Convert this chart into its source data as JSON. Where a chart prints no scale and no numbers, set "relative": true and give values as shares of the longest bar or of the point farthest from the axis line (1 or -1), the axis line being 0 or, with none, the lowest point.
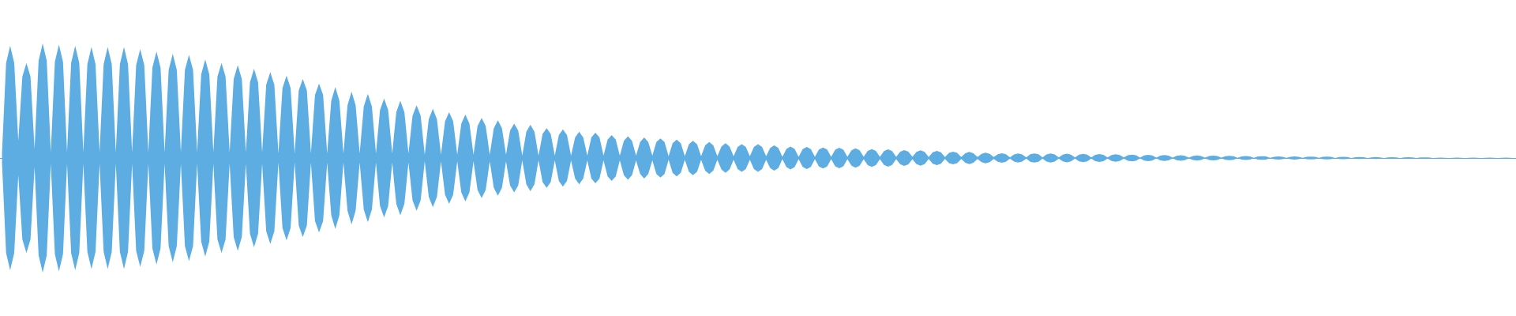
{
  "chart_data": {
    "type": "area",
    "relative": true,
    "categories": [
      null,
      null,
      null,
      null,
      null,
      null,
      null,
      null,
      null,
      null,
      null,
      null,
      null,
      null,
      null,
      null,
      null,
      null,
      null,
      null,
      null,
      null,
      null,
      null,
      null,
      null,
      null,
      null,
      null,
      null,
      null,
      null,
      null,
      null,
      null,
      null,
      null,
      null,
      null,
      null,
      null,
      null,
      null,
      null,
      null,
      null,
      null,
      null,
      null,
      null,
      null,
      null,
      null,
      null,
      null,
      null,
      null,
      null,
      null,
      null,
      null,
      null,
      null,
      null,
      null,
      null,
      null,
      null,
      null,
      null,
      null,
      null,
      null,
      null,
      null,
      null,
      null,
      null,
      null,
      null,
      null,
      null,
      null,
      null,
      null,
      null,
      null,
      null,
      null,
      null,
      null,
      null,
      null,
      null,
      null,
      null,
      null,
      null,
      null,
      null,
      null,
      null,
      null,
      null,
      null,
      null,
      null,
      null,
      null,
      null,
      null,
      null,
      null,
      null,
      null,
      null,
      null,
      null,
      null,
      null,
      null,
      null,
      null,
      null,
      null,
      null,
      null,
      null,
      null,
      null,
      null,
      null,
      null,
      null,
      null,
      null,
      null,
      null,
      null,
      null,
      null,
      null,
      null,
      null,
      null,
      null,
      null,
      null,
      null,
      null,
      null,
      null,
      null,
      null,
      null,
      null,
      null,
      null,
      null,
      null,
      null,
      null,
      null,
      null,
      null,
      null,
      null,
      null,
      null,
      null,
      null,
      null,
      null,
      null,
      null,
      null,
      null,
      null,
      null,
      null,
      null,
      null,
      null,
      null,
      null,
      null,
      null,
      null,
      null,
      null,
      null,
      null,
      null,
      null,
      null,
      null,
      null,
      null,
      null,
      null,
      null,
      null,
      null,
      null,
      null,
      null,
      null,
      null,
      null,
      null,
      null,
      null,
      null,
      null,
      null,
      null,
      null,
      null,
      null,
      null,
      null,
      null,
      null,
      null,
      null,
      null,
      null,
      null,
      null,
      null,
      null,
      null,
      null,
      null,
      null,
      null,
      null,
      null,
      null,
      null,
      null,
      null,
      null,
      null,
      null,
      null,
      null,
      null,
      null,
      null,
      null,
      null,
      null,
      null,
      null,
      null,
      null,
      null,
      null,
      null,
      null,
      null,
      null,
      null,
      null,
      null,
      null,
      null,
      null,
      null,
      null,
      null,
      null,
      null,
      null,
      null,
      null,
      null,
      null,
      null,
      null,
      null,
      null,
      null,
      null,
      null,
      null,
      null,
      null,
      null,
      null,
      null,
      null,
      null,
      null,
      null,
      null,
      null,
      null,
      null,
      null,
      null,
      null,
      null,
      null,
      null,
      null,
      null,
      null,
      null,
      null,
      null,
      null,
      null,
      null,
      null,
      null,
      null,
      null,
      null,
      null,
      null,
      null,
      null,
      null,
      null,
      null,
      null,
      null,
      null,
      null,
      null,
      null,
      null,
      null,
      null,
      null,
      null,
      null,
      null,
      null,
      null,
      null,
      null,
      null,
      null,
      null,
      null,
      null,
      null,
      null,
      null,
      null,
      null,
      null,
      null,
      null,
      null,
      null,
      null,
      null,
      null,
      null,
      null,
      null,
      null,
      null,
      null,
      null,
      null,
      null,
      null,
      null
    ],
    "series": [
      {
        "color": "#5dade2",
        "values": [
          0.05,
          0.83,
          0.98,
          0.83,
          0.15,
          0.71,
          0.83,
          0.71,
          0.08,
          0.85,
          1,
          0.85,
          0.05,
          0.84,
          0.99,
          0.84,
          0.05,
          0.83,
          0.98,
          0.83,
          0.05,
          0.82,
          0.97,
          0.82,
          0.05,
          0.82,
          0.97,
          0.82,
          0.05,
          0.82,
          0.97,
          0.82,
          0.05,
          0.81,
          0.95,
          0.81,
          0.05,
          0.79,
          0.93,
          0.79,
          0.05,
          0.77,
          0.91,
          0.77,
          0.05,
          0.77,
          0.9,
          0.77,
          0.05,
          0.73,
          0.86,
          0.73,
          0.05,
          0.71,
          0.83,
          0.71,
          0.05,
          0.69,
          0.81,
          0.69,
          0.05,
          0.66,
          0.78,
          0.66,
          0.05,
          0.64,
          0.75,
          0.64,
          0.04,
          0.61,
          0.72,
          0.61,
          0.04,
          0.59,
          0.69,
          0.59,
          0.04,
          0.55,
          0.65,
          0.55,
          0.04,
          0.5,
          0.62,
          0.5,
          0.04,
          0.46,
          0.58,
          0.46,
          0.04,
          0.45,
          0.56,
          0.45,
          0.04,
          0.42,
          0.52,
          0.42,
          0.04,
          0.4,
          0.5,
          0.4,
          0.04,
          0.37,
          0.46,
          0.37,
          0.03,
          0.34,
          0.43,
          0.34,
          0.03,
          0.32,
          0.4,
          0.32,
          0.03,
          0.3,
          0.38,
          0.3,
          0.03,
          0.28,
          0.35,
          0.28,
          0.03,
          0.26,
          0.33,
          0.26,
          0.03,
          0.24,
          0.3,
          0.24,
          0.02,
          0.23,
          0.29,
          0.23,
          0.02,
          0.21,
          0.26,
          0.21,
          0.02,
          0.2,
          0.25,
          0.2,
          0.02,
          0.18,
          0.23,
          0.18,
          0.02,
          0.18,
          0.22,
          0.18,
          0.02,
          0.16,
          0.2,
          0.16,
          0.02,
          0.15,
          0.19,
          0.15,
          0.02,
          0.14,
          0.18,
          0.14,
          0.02,
          0.14,
          0.17,
          0.14,
          0.015,
          0.13,
          0.16,
          0.13,
          0.015,
          0.12,
          0.15,
          0.12,
          0.015,
          0.11,
          0.14,
          0.11,
          0.015,
          0.1,
          0.13,
          0.1,
          0.015,
          0.096,
          0.12,
          0.096,
          0.015,
          0.096,
          0.12,
          0.096,
          0.015,
          0.088,
          0.11,
          0.088,
          0.01,
          0.08,
          0.1,
          0.08,
          0.01,
          0.078,
          0.097,
          0.078,
          0.01,
          0.074,
          0.092,
          0.074,
          0.01,
          0.072,
          0.09,
          0.072,
          0.01,
          0.068,
          0.085,
          0.068,
          0.01,
          0.062,
          0.078,
          0.062,
          0.01,
          0.061,
          0.076,
          0.061,
          0.01,
          0.055,
          0.069,
          0.055,
          0.01,
          0.054,
          0.067,
          0.054,
          0.008,
          0.05,
          0.062,
          0.05,
          0.008,
          0.044,
          0.055,
          0.044,
          0.008,
          0.042,
          0.053,
          0.042,
          0.008,
          0.037,
          0.046,
          0.037,
          0.008,
          0.033,
          0.041,
          0.033,
          0.006,
          0.031,
          0.039,
          0.031,
          0.006,
          0.032,
          0.04,
          0.032,
          0.006,
          0.031,
          0.039,
          0.031,
          0.006,
          0.03,
          0.038,
          0.03,
          0.005,
          0.03,
          0.037,
          0.03,
          0.005,
          0.027,
          0.034,
          0.027,
          0.005,
          0.026,
          0.032,
          0.026,
          0.005,
          0.024,
          0.03,
          0.024,
          0.004,
          0.022,
          0.028,
          0.022,
          0.004,
          0.021,
          0.026,
          0.021,
          0.004,
          0.019,
          0.024,
          0.019,
          0.003,
          0.018,
          0.023,
          0.018,
          0.003,
          0.017,
          0.021,
          0.017,
          0.003,
          0.015,
          0.019,
          0.015,
          0.002,
          0.014,
          0.017,
          0.014,
          0.002,
          0.013,
          0.016,
          0.013,
          0.002,
          0.011,
          0.014,
          0.011,
          0.001,
          0.011,
          0.014,
          0.011,
          0.001,
          0.01,
          0.012,
          0.01,
          0.001,
          0.01,
          0.012,
          0.01,
          0,
          0.008,
          0.01,
          0.008,
          0,
          0.007,
          0.009,
          0.007,
          0,
          0.006,
          0.008,
          0.006,
          0,
          0.006,
          0.007,
          0.006,
          0,
          0.006,
          0.007,
          0.006,
          0,
          0.005,
          0.006,
          0.005,
          0,
          0.002,
          0.003,
          0.002,
          0,
          0.002,
          0.003,
          0.002,
          0,
          0.002,
          0.003,
          0.002,
          0,
          0.002,
          0.003,
          0.002,
          0,
          0.002,
          0.003,
          0.002,
          0
        ]
      },
      {
        "color": "#5dade2",
        "values": [
          -0.05,
          -0.83,
          -0.98,
          -0.83,
          -0.15,
          -0.71,
          -0.83,
          -0.71,
          -0.08,
          -0.85,
          -1,
          -0.85,
          -0.05,
          -0.84,
          -0.99,
          -0.84,
          -0.05,
          -0.83,
          -0.98,
          -0.83,
          -0.05,
          -0.82,
          -0.97,
          -0.82,
          -0.05,
          -0.82,
          -0.97,
          -0.82,
          -0.05,
          -0.82,
          -0.97,
          -0.82,
          -0.05,
          -0.81,
          -0.95,
          -0.81,
          -0.05,
          -0.79,
          -0.93,
          -0.79,
          -0.05,
          -0.77,
          -0.91,
          -0.77,
          -0.05,
          -0.77,
          -0.9,
          -0.77,
          -0.05,
          -0.73,
          -0.86,
          -0.73,
          -0.05,
          -0.71,
          -0.83,
          -0.71,
          -0.05,
          -0.69,
          -0.81,
          -0.69,
          -0.05,
          -0.66,
          -0.78,
          -0.66,
          -0.05,
          -0.64,
          -0.75,
          -0.64,
          -0.04,
          -0.61,
          -0.72,
          -0.61,
          -0.04,
          -0.59,
          -0.69,
          -0.59,
          -0.04,
          -0.55,
          -0.65,
          -0.55,
          -0.04,
          -0.5,
          -0.62,
          -0.5,
          -0.04,
          -0.46,
          -0.58,
          -0.46,
          -0.04,
          -0.45,
          -0.56,
          -0.45,
          -0.04,
          -0.42,
          -0.52,
          -0.42,
          -0.04,
          -0.4,
          -0.5,
          -0.4,
          -0.04,
          -0.37,
          -0.46,
          -0.37,
          -0.03,
          -0.34,
          -0.43,
          -0.34,
          -0.03,
          -0.32,
          -0.4,
          -0.32,
          -0.03,
          -0.3,
          -0.38,
          -0.3,
          -0.03,
          -0.28,
          -0.35,
          -0.28,
          -0.03,
          -0.26,
          -0.33,
          -0.26,
          -0.03,
          -0.24,
          -0.3,
          -0.24,
          -0.02,
          -0.23,
          -0.29,
          -0.23,
          -0.02,
          -0.21,
          -0.26,
          -0.21,
          -0.02,
          -0.2,
          -0.25,
          -0.2,
          -0.02,
          -0.18,
          -0.23,
          -0.18,
          -0.02,
          -0.18,
          -0.22,
          -0.18,
          -0.02,
          -0.16,
          -0.2,
          -0.16,
          -0.02,
          -0.15,
          -0.19,
          -0.15,
          -0.02,
          -0.14,
          -0.18,
          -0.14,
          -0.02,
          -0.14,
          -0.17,
          -0.14,
          -0.015,
          -0.13,
          -0.16,
          -0.13,
          -0.015,
          -0.12,
          -0.15,
          -0.12,
          -0.015,
          -0.11,
          -0.14,
          -0.11,
          -0.015,
          -0.1,
          -0.13,
          -0.1,
          -0.015,
          -0.096,
          -0.12,
          -0.096,
          -0.015,
          -0.096,
          -0.12,
          -0.096,
          -0.015,
          -0.088,
          -0.11,
          -0.088,
          -0.01,
          -0.08,
          -0.1,
          -0.08,
          -0.01,
          -0.078,
          -0.097,
          -0.078,
          -0.01,
          -0.074,
          -0.092,
          -0.074,
          -0.01,
          -0.072,
          -0.09,
          -0.072,
          -0.01,
          -0.068,
          -0.085,
          -0.068,
          -0.01,
          -0.062,
          -0.078,
          -0.062,
          -0.01,
          -0.061,
          -0.076,
          -0.061,
          -0.01,
          -0.055,
          -0.069,
          -0.055,
          -0.01,
          -0.054,
          -0.067,
          -0.054,
          -0.008,
          -0.05,
          -0.062,
          -0.05,
          -0.008,
          -0.044,
          -0.055,
          -0.044,
          -0.008,
          -0.042,
          -0.053,
          -0.042,
          -0.008,
          -0.037,
          -0.046,
          -0.037,
          -0.008,
          -0.033,
          -0.041,
          -0.033,
          -0.006,
          -0.031,
          -0.039,
          -0.031,
          -0.006,
          -0.032,
          -0.04,
          -0.032,
          -0.006,
          -0.031,
          -0.039,
          -0.031,
          -0.006,
          -0.03,
          -0.038,
          -0.03,
          -0.005,
          -0.03,
          -0.037,
          -0.03,
          -0.005,
          -0.027,
          -0.034,
          -0.027,
          -0.005,
          -0.026,
          -0.032,
          -0.026,
          -0.005,
          -0.024,
          -0.03,
          -0.024,
          -0.004,
          -0.022,
          -0.028,
          -0.022,
          -0.004,
          -0.021,
          -0.026,
          -0.021,
          -0.004,
          -0.019,
          -0.024,
          -0.019,
          -0.003,
          -0.018,
          -0.023,
          -0.018,
          -0.003,
          -0.017,
          -0.021,
          -0.017,
          -0.003,
          -0.015,
          -0.019,
          -0.015,
          -0.002,
          -0.014,
          -0.017,
          -0.014,
          -0.002,
          -0.013,
          -0.016,
          -0.013,
          -0.002,
          -0.011,
          -0.014,
          -0.011,
          -0.001,
          -0.011,
          -0.014,
          -0.011,
          -0.001,
          -0.01,
          -0.012,
          -0.01,
          -0.001,
          -0.01,
          -0.012,
          -0.01,
          0,
          -0.008,
          -0.01,
          -0.008,
          0,
          -0.007,
          -0.009,
          -0.007,
          0,
          -0.006,
          -0.008,
          -0.006,
          0,
          -0.006,
          -0.007,
          -0.006,
          0,
          -0.006,
          -0.007,
          -0.006,
          0,
          -0.005,
          -0.006,
          -0.005,
          0,
          -0.002,
          -0.003,
          -0.002,
          0,
          -0.002,
          -0.003,
          -0.002,
          0,
          -0.002,
          -0.003,
          -0.002,
          0,
          -0.002,
          -0.003,
          -0.002,
          0,
          -0.002,
          -0.003,
          -0.002,
          0
        ]
      }
    ]
  }
}
